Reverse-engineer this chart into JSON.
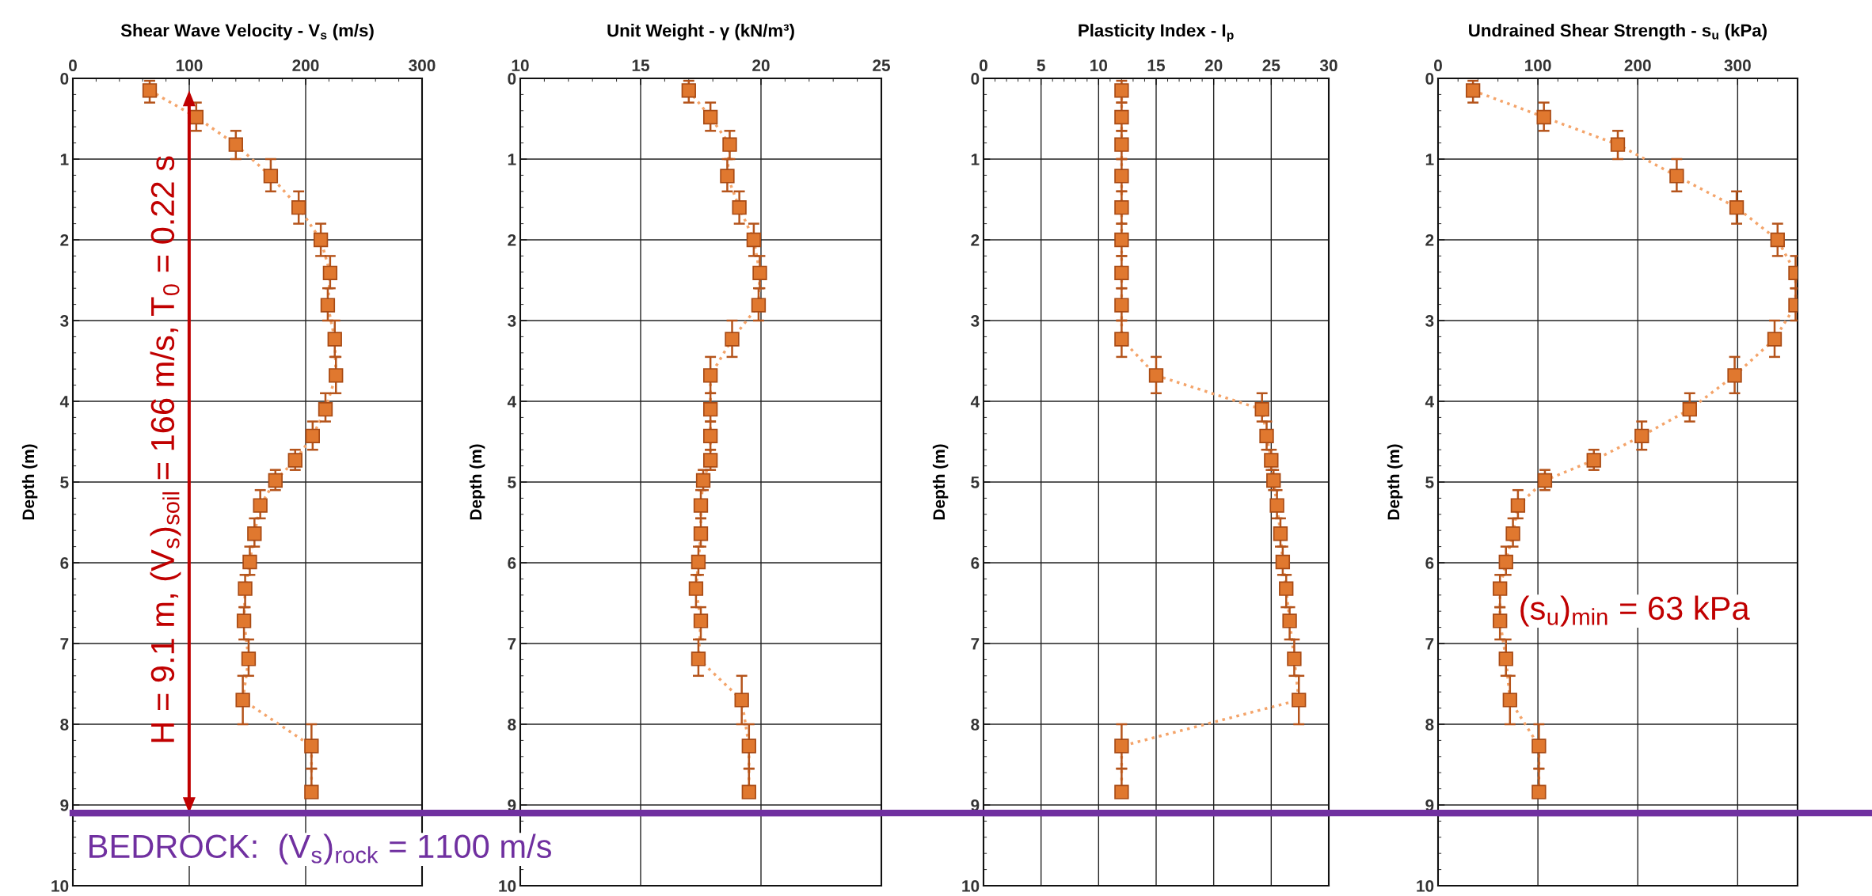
{
  "chart_data": [
    {
      "type": "line",
      "title": "Shear Wave Velocity - V$_{s}$ (m/s)",
      "ylabel": "Depth (m)",
      "xlim": [
        0,
        300
      ],
      "xticks": [
        0,
        100,
        200,
        300
      ],
      "ylim": [
        10,
        0
      ],
      "yticks": [
        0,
        1,
        2,
        3,
        4,
        5,
        6,
        7,
        8,
        9,
        10
      ],
      "grid": true,
      "marker": "square",
      "line_style": "dotted",
      "series": [
        {
          "color": "#e0782f",
          "x": [
            66,
            106,
            140,
            170,
            194,
            213,
            221,
            219,
            225,
            226,
            217,
            206,
            191,
            174,
            161,
            156,
            152,
            148,
            147,
            151,
            146,
            205,
            205
          ],
          "values": [
            0.15,
            0.48,
            0.82,
            1.21,
            1.6,
            2.0,
            2.41,
            2.81,
            3.23,
            3.68,
            4.1,
            4.43,
            4.73,
            4.98,
            5.29,
            5.64,
            5.99,
            6.32,
            6.72,
            7.19,
            7.7,
            8.27,
            8.84
          ],
          "errors": [
            [
              0.03,
              0.3
            ],
            [
              0.3,
              0.65
            ],
            [
              0.65,
              1.0
            ],
            [
              1.0,
              1.4
            ],
            [
              1.4,
              1.8
            ],
            [
              1.8,
              2.2
            ],
            [
              2.2,
              2.6
            ],
            [
              2.6,
              3.0
            ],
            [
              3.0,
              3.45
            ],
            [
              3.45,
              3.9
            ],
            [
              3.9,
              4.25
            ],
            [
              4.25,
              4.6
            ],
            [
              4.6,
              4.85
            ],
            [
              4.85,
              5.1
            ],
            [
              5.1,
              5.45
            ],
            [
              5.45,
              5.8
            ],
            [
              5.8,
              6.15
            ],
            [
              6.15,
              6.55
            ],
            [
              6.55,
              6.95
            ],
            [
              6.95,
              7.4
            ],
            [
              7.4,
              8.0
            ],
            [
              8.0,
              8.55
            ],
            [
              8.55,
              8.84
            ]
          ]
        }
      ],
      "ref_lines": [
        {
          "axis": "y",
          "value": 9.1,
          "color": "#7030a0"
        }
      ],
      "annotations": [
        "H = 9.1 m, (V$_{s}$)$_{soil}$ = 166 m/s, T$_{0}$ = 0.22 s",
        "BEDROCK:  (V$_{s}$)$_{rock}$ = 1100 m/s"
      ]
    },
    {
      "type": "line",
      "title": "Unit Weight - γ (kN/m³)",
      "ylabel": "Depth (m)",
      "xlim": [
        10,
        25
      ],
      "xticks": [
        10,
        15,
        20,
        25
      ],
      "ylim": [
        10,
        0
      ],
      "yticks": [
        0,
        1,
        2,
        3,
        4,
        5,
        6,
        7,
        8,
        9,
        10
      ],
      "grid": true,
      "marker": "square",
      "line_style": "dotted",
      "series": [
        {
          "color": "#e0782f",
          "x": [
            17.0,
            17.9,
            18.7,
            18.6,
            19.1,
            19.7,
            19.95,
            19.9,
            18.8,
            17.9,
            17.9,
            17.9,
            17.9,
            17.6,
            17.5,
            17.5,
            17.4,
            17.3,
            17.5,
            17.4,
            19.2,
            19.5,
            19.5
          ],
          "values": [
            0.15,
            0.48,
            0.82,
            1.21,
            1.6,
            2.0,
            2.41,
            2.81,
            3.23,
            3.68,
            4.1,
            4.43,
            4.73,
            4.98,
            5.29,
            5.64,
            5.99,
            6.32,
            6.72,
            7.19,
            7.7,
            8.27,
            8.84
          ],
          "errors": [
            [
              0.03,
              0.3
            ],
            [
              0.3,
              0.65
            ],
            [
              0.65,
              1.0
            ],
            [
              1.0,
              1.4
            ],
            [
              1.4,
              1.8
            ],
            [
              1.8,
              2.2
            ],
            [
              2.2,
              2.6
            ],
            [
              2.6,
              3.0
            ],
            [
              3.0,
              3.45
            ],
            [
              3.45,
              3.9
            ],
            [
              3.9,
              4.25
            ],
            [
              4.25,
              4.6
            ],
            [
              4.6,
              4.85
            ],
            [
              4.85,
              5.1
            ],
            [
              5.1,
              5.45
            ],
            [
              5.45,
              5.8
            ],
            [
              5.8,
              6.15
            ],
            [
              6.15,
              6.55
            ],
            [
              6.55,
              6.95
            ],
            [
              6.95,
              7.4
            ],
            [
              7.4,
              8.0
            ],
            [
              8.0,
              8.55
            ],
            [
              8.55,
              8.84
            ]
          ]
        }
      ],
      "ref_lines": [
        {
          "axis": "y",
          "value": 9.1,
          "color": "#7030a0"
        }
      ]
    },
    {
      "type": "line",
      "title": "Plasticity Index - I$_{p}$",
      "ylabel": "Depth (m)",
      "xlim": [
        0,
        30
      ],
      "xticks": [
        0,
        5,
        10,
        15,
        20,
        25,
        30
      ],
      "ylim": [
        10,
        0
      ],
      "yticks": [
        0,
        1,
        2,
        3,
        4,
        5,
        6,
        7,
        8,
        9,
        10
      ],
      "grid": true,
      "marker": "square",
      "line_style": "dotted",
      "series": [
        {
          "color": "#e0782f",
          "x": [
            12,
            12,
            12,
            12,
            12,
            12,
            12,
            12,
            12,
            15,
            24.2,
            24.6,
            25,
            25.2,
            25.5,
            25.8,
            26,
            26.3,
            26.6,
            27,
            27.4,
            12,
            12
          ],
          "values": [
            0.15,
            0.48,
            0.82,
            1.21,
            1.6,
            2.0,
            2.41,
            2.81,
            3.23,
            3.68,
            4.1,
            4.43,
            4.73,
            4.98,
            5.29,
            5.64,
            5.99,
            6.32,
            6.72,
            7.19,
            7.7,
            8.27,
            8.84
          ],
          "errors": [
            [
              0.03,
              0.3
            ],
            [
              0.3,
              0.65
            ],
            [
              0.65,
              1.0
            ],
            [
              1.0,
              1.4
            ],
            [
              1.4,
              1.8
            ],
            [
              1.8,
              2.2
            ],
            [
              2.2,
              2.6
            ],
            [
              2.6,
              3.0
            ],
            [
              3.0,
              3.45
            ],
            [
              3.45,
              3.9
            ],
            [
              3.9,
              4.25
            ],
            [
              4.25,
              4.6
            ],
            [
              4.6,
              4.85
            ],
            [
              4.85,
              5.1
            ],
            [
              5.1,
              5.45
            ],
            [
              5.45,
              5.8
            ],
            [
              5.8,
              6.15
            ],
            [
              6.15,
              6.55
            ],
            [
              6.55,
              6.95
            ],
            [
              6.95,
              7.4
            ],
            [
              7.4,
              8.0
            ],
            [
              8.0,
              8.55
            ],
            [
              8.55,
              8.84
            ]
          ]
        }
      ],
      "ref_lines": [
        {
          "axis": "y",
          "value": 9.1,
          "color": "#7030a0"
        }
      ]
    },
    {
      "type": "line",
      "title": "Undrained Shear Strength - s$_{u}$ (kPa)",
      "ylabel": "Depth (m)",
      "xlim": [
        0,
        360
      ],
      "xticks": [
        0,
        100,
        200,
        300
      ],
      "ylim": [
        10,
        0
      ],
      "yticks": [
        0,
        1,
        2,
        3,
        4,
        5,
        6,
        7,
        8,
        9,
        10
      ],
      "grid": true,
      "marker": "square",
      "line_style": "dotted",
      "series": [
        {
          "color": "#e0782f",
          "x": [
            35,
            106,
            180,
            239,
            299,
            340,
            358,
            358,
            337,
            297,
            252,
            204,
            156,
            107,
            80,
            75,
            68,
            62,
            62,
            68,
            72,
            101,
            101
          ],
          "values": [
            0.15,
            0.48,
            0.82,
            1.21,
            1.6,
            2.0,
            2.41,
            2.81,
            3.23,
            3.68,
            4.1,
            4.43,
            4.73,
            4.98,
            5.29,
            5.64,
            5.99,
            6.32,
            6.72,
            7.19,
            7.7,
            8.27,
            8.84
          ],
          "errors": [
            [
              0.03,
              0.3
            ],
            [
              0.3,
              0.65
            ],
            [
              0.65,
              1.0
            ],
            [
              1.0,
              1.4
            ],
            [
              1.4,
              1.8
            ],
            [
              1.8,
              2.2
            ],
            [
              2.2,
              2.6
            ],
            [
              2.6,
              3.0
            ],
            [
              3.0,
              3.45
            ],
            [
              3.45,
              3.9
            ],
            [
              3.9,
              4.25
            ],
            [
              4.25,
              4.6
            ],
            [
              4.6,
              4.85
            ],
            [
              4.85,
              5.1
            ],
            [
              5.1,
              5.45
            ],
            [
              5.45,
              5.8
            ],
            [
              5.8,
              6.15
            ],
            [
              6.15,
              6.55
            ],
            [
              6.55,
              6.95
            ],
            [
              6.95,
              7.4
            ],
            [
              7.4,
              8.0
            ],
            [
              8.0,
              8.55
            ],
            [
              8.55,
              8.84
            ]
          ]
        }
      ],
      "ref_lines": [
        {
          "axis": "y",
          "value": 9.1,
          "color": "#7030a0"
        }
      ],
      "annotations": [
        {
          "text": "(s$_{u}$)$_{min}$ = 63 kPa",
          "x": 62,
          "y": 6.6
        }
      ]
    }
  ]
}
